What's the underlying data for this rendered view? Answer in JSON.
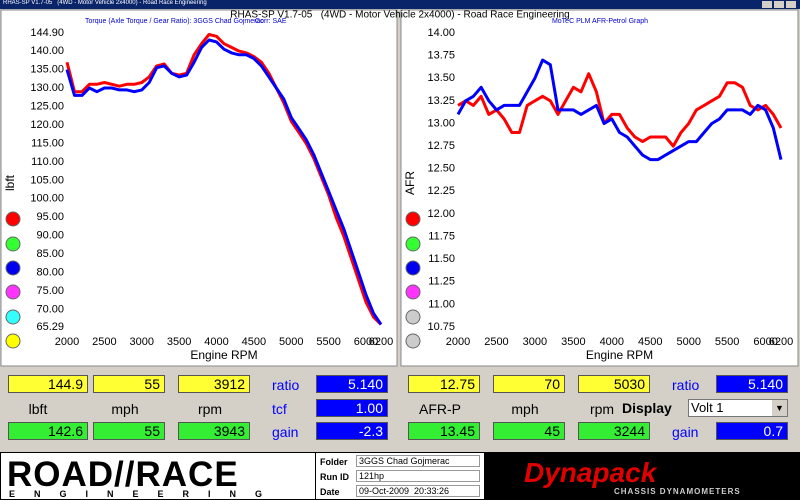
{
  "window": {
    "title": "RHAS-SP V1.7-05   (4WD - Motor Vehicle 2x4000) - Road Race Engineering"
  },
  "header": {
    "title": "RHAS-SP V1.7-05   (4WD - Motor Vehicle 2x4000) - Road Race Engineering"
  },
  "chart_data": [
    {
      "type": "line",
      "title": "Torque (Axle Torque / Gear Ratio): 3GGS Chad Gojmerac",
      "subtitle": "Corr: SAE",
      "x_label": "Engine RPM",
      "y_label": "lbft",
      "xlim": [
        2000,
        6200
      ],
      "xticks": [
        2000,
        2500,
        3000,
        3500,
        4000,
        4500,
        5000,
        5500,
        6000,
        6200
      ],
      "ylim": [
        65.29,
        144.9
      ],
      "yticks": [
        65.29,
        {
          "value": 70,
          "label": "70.00"
        },
        {
          "value": 75,
          "label": "75.00"
        },
        {
          "value": 80,
          "label": "80.00"
        },
        {
          "value": 85,
          "label": "85.00"
        },
        {
          "value": 90,
          "label": "90.00"
        },
        {
          "value": 95,
          "label": "95.00"
        },
        {
          "value": 100,
          "label": "100.00"
        },
        {
          "value": 105,
          "label": "105.00"
        },
        {
          "value": 110,
          "label": "110.00"
        },
        {
          "value": 115,
          "label": "115.00"
        },
        {
          "value": 120,
          "label": "120.00"
        },
        {
          "value": 125,
          "label": "125.00"
        },
        {
          "value": 130,
          "label": "130.00"
        },
        {
          "value": 135,
          "label": "135.00"
        },
        {
          "value": 140,
          "label": "140.00"
        },
        {
          "value": 144.9,
          "label": "144.90"
        }
      ],
      "grid": false,
      "x": [
        2000,
        2100,
        2200,
        2300,
        2400,
        2500,
        2600,
        2700,
        2800,
        2900,
        3000,
        3100,
        3200,
        3300,
        3400,
        3500,
        3600,
        3700,
        3800,
        3900,
        4000,
        4100,
        4200,
        4300,
        4400,
        4500,
        4600,
        4700,
        4800,
        4900,
        5000,
        5100,
        5200,
        5300,
        5400,
        5500,
        5600,
        5700,
        5800,
        5900,
        6000,
        6100,
        6200
      ],
      "series": [
        {
          "color": "#ff0000",
          "values": [
            137,
            129,
            129,
            131,
            131,
            131.5,
            131,
            130.5,
            131,
            131,
            131.5,
            133,
            136,
            136.5,
            134,
            133.5,
            134,
            139,
            142,
            144.5,
            144,
            142,
            141,
            140,
            139.5,
            138.5,
            137,
            134,
            130,
            126,
            121,
            118,
            115,
            111,
            106,
            101,
            95,
            90,
            84,
            78,
            72,
            68,
            66
          ]
        },
        {
          "color": "#0000ff",
          "values": [
            135,
            128,
            128,
            130,
            129,
            130,
            130,
            129.5,
            129.5,
            129,
            129.5,
            131.5,
            135.5,
            136,
            134,
            133,
            133.5,
            137,
            141,
            143,
            142.5,
            140.5,
            139.5,
            139,
            139,
            138,
            136,
            133,
            130,
            127,
            122,
            119,
            116,
            112,
            107,
            102,
            97,
            92,
            86,
            80,
            74,
            69,
            66
          ]
        }
      ]
    },
    {
      "type": "line",
      "title": "MoTeC PLM AFR-Petrol Graph",
      "x_label": "Engine RPM",
      "y_label": "AFR",
      "xlim": [
        2000,
        6200
      ],
      "xticks": [
        2000,
        2500,
        3000,
        3500,
        4000,
        4500,
        5000,
        5500,
        6000,
        6200
      ],
      "ylim": [
        10.75,
        14
      ],
      "yticks": [
        10.75,
        {
          "value": 11,
          "label": "11.00"
        },
        11.25,
        {
          "value": 11.5,
          "label": "11.50"
        },
        11.75,
        {
          "value": 12,
          "label": "12.00"
        },
        12.25,
        {
          "value": 12.5,
          "label": "12.50"
        },
        12.75,
        {
          "value": 13,
          "label": "13.00"
        },
        13.25,
        {
          "value": 13.5,
          "label": "13.50"
        },
        13.75,
        {
          "value": 14,
          "label": "14.00"
        }
      ],
      "grid": false,
      "x": [
        2000,
        2100,
        2200,
        2300,
        2400,
        2500,
        2600,
        2700,
        2800,
        2900,
        3000,
        3100,
        3200,
        3300,
        3400,
        3500,
        3600,
        3700,
        3800,
        3900,
        4000,
        4100,
        4200,
        4300,
        4400,
        4500,
        4600,
        4700,
        4800,
        4900,
        5000,
        5100,
        5200,
        5300,
        5400,
        5500,
        5600,
        5700,
        5800,
        5900,
        6000,
        6100,
        6200
      ],
      "series": [
        {
          "color": "#ff0000",
          "values": [
            13.2,
            13.25,
            13.2,
            13.3,
            13.1,
            13.15,
            13.05,
            12.9,
            12.9,
            13.2,
            13.25,
            13.3,
            13.25,
            13.1,
            13.25,
            13.4,
            13.35,
            13.55,
            13.35,
            13.0,
            13.1,
            13.1,
            12.95,
            12.85,
            12.8,
            12.85,
            12.85,
            12.85,
            12.75,
            12.9,
            13.0,
            13.15,
            13.2,
            13.25,
            13.3,
            13.45,
            13.45,
            13.4,
            13.2,
            13.15,
            13.2,
            13.1,
            12.95
          ]
        },
        {
          "color": "#0000ff",
          "values": [
            13.1,
            13.25,
            13.3,
            13.4,
            13.25,
            13.15,
            13.2,
            13.2,
            13.2,
            13.35,
            13.5,
            13.7,
            13.65,
            13.15,
            13.15,
            13.15,
            13.1,
            13.15,
            13.2,
            13.0,
            13.05,
            12.9,
            12.85,
            12.75,
            12.65,
            12.6,
            12.6,
            12.65,
            12.7,
            12.75,
            12.8,
            12.8,
            12.9,
            13.0,
            13.05,
            13.15,
            13.15,
            13.15,
            13.1,
            13.2,
            13.15,
            12.95,
            12.6
          ]
        }
      ]
    }
  ],
  "readouts": {
    "left": {
      "top": [
        "144.9",
        "55",
        "3912"
      ],
      "labels": [
        "lbft",
        "mph",
        "rpm"
      ],
      "bottom": [
        "142.6",
        "55",
        "3943"
      ],
      "ratio_label": "ratio",
      "ratio": "5.140",
      "tcf_label": "tcf",
      "tcf": "1.00",
      "gain_label": "gain",
      "gain": "-2.3"
    },
    "right": {
      "top": [
        "12.75",
        "70",
        "5030"
      ],
      "labels": [
        "AFR-P",
        "mph",
        "rpm"
      ],
      "bottom": [
        "13.45",
        "45",
        "3244"
      ],
      "ratio_label": "ratio",
      "ratio": "5.140",
      "display_label": "Display",
      "display": "Volt 1",
      "gain_label": "gain",
      "gain": "0.7"
    }
  },
  "footer": {
    "logo_main": "ROAD//RACE",
    "logo_sub": "ENGINEERING",
    "info": [
      {
        "label": "Folder",
        "value": "3GGS Chad Gojmerac"
      },
      {
        "label": "Run ID",
        "value": "121hp"
      },
      {
        "label": "Date",
        "value": "09-Oct-2009  20:33:26"
      }
    ],
    "brand": "Dynapack",
    "brand_sub": "CHASSIS DYNAMOMETERS"
  }
}
